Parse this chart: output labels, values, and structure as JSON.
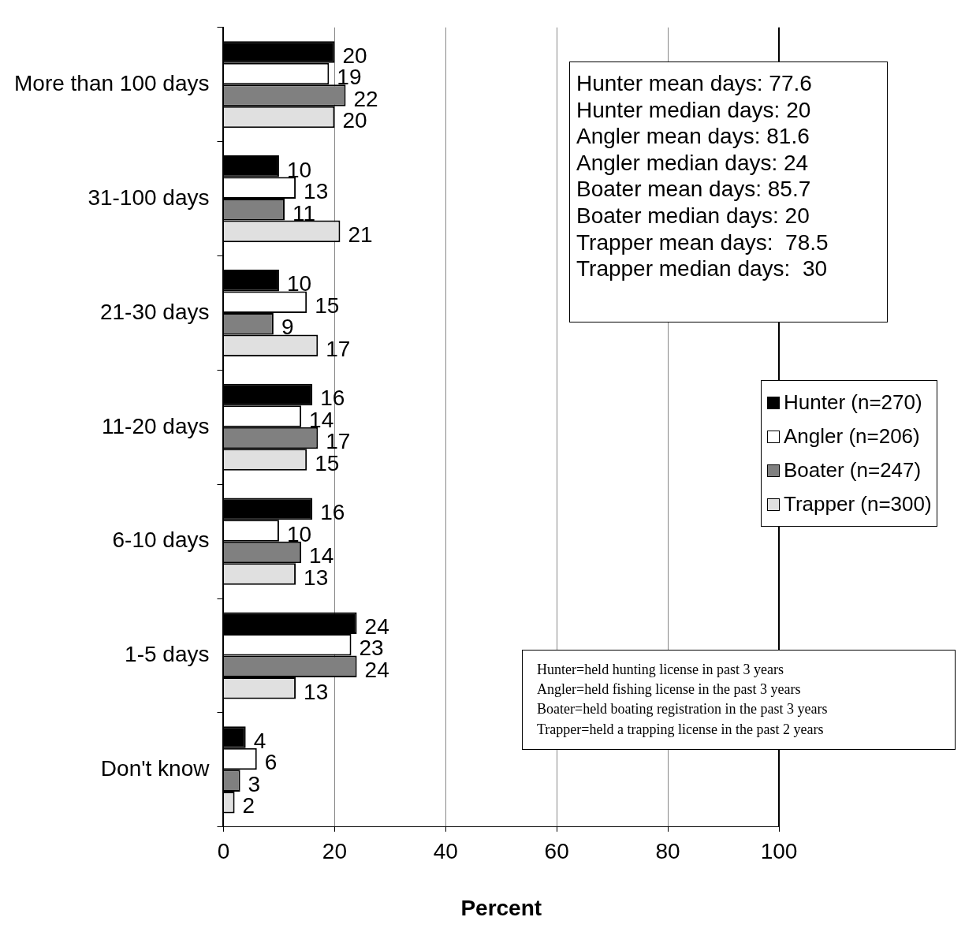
{
  "chart_data": {
    "type": "bar",
    "orientation": "horizontal",
    "xlabel": "Percent",
    "categories": [
      "More than 100 days",
      "31-100 days",
      "21-30 days",
      "11-20 days",
      "6-10 days",
      "1-5 days",
      "Don't know"
    ],
    "series": [
      {
        "name": "Hunter (n=270)",
        "color": "#000000",
        "values": [
          20,
          10,
          10,
          16,
          16,
          24,
          4
        ]
      },
      {
        "name": "Angler (n=206)",
        "color": "#ffffff",
        "values": [
          19,
          13,
          15,
          14,
          10,
          23,
          6
        ]
      },
      {
        "name": "Boater (n=247)",
        "color": "#808080",
        "values": [
          22,
          11,
          9,
          17,
          14,
          24,
          3
        ]
      },
      {
        "name": "Trapper (n=300)",
        "color": "#e0e0e0",
        "values": [
          20,
          21,
          17,
          15,
          13,
          13,
          2
        ]
      }
    ],
    "xlim": [
      0,
      100
    ],
    "xticks": [
      0,
      20,
      40,
      60,
      80,
      100
    ],
    "grid": "x",
    "legend": "right",
    "data_labels": true,
    "annotations": [
      "Hunter mean days: 77.6\nHunter median days: 20\nAngler mean days: 81.6\nAngler median days: 24\nBoater mean days: 85.7\nBoater median days: 20\nTrapper mean days:  78.5\nTrapper median days:  30",
      "Hunter=held hunting license in past 3 years\nAngler=held fishing license in the past 3 years\nBoater=held boating registration in the past 3 years\nTrapper=held a trapping license in the past 2 years"
    ]
  }
}
